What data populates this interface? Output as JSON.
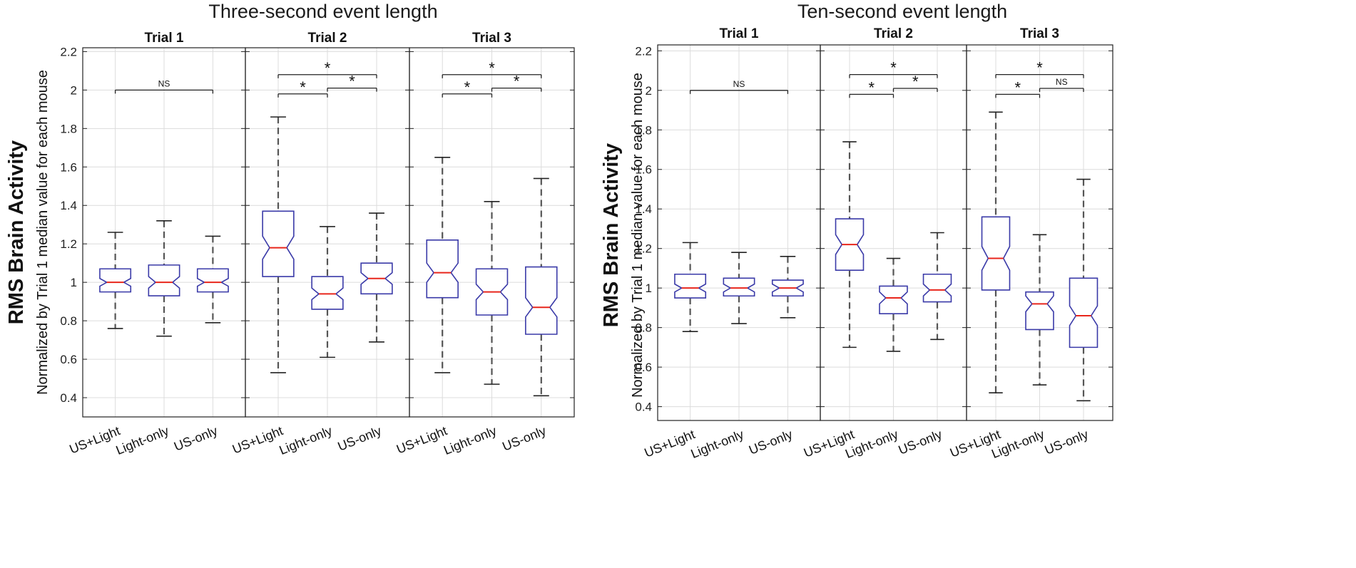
{
  "chart_data": [
    {
      "type": "boxplot",
      "title": "Three-second event length",
      "ylabel": "RMS Brain Activity",
      "ylabel_sub": "Normalized by Trial 1 median value for each mouse",
      "ylim": [
        0.3,
        2.22
      ],
      "yticks": [
        0.4,
        0.6,
        0.8,
        1,
        1.2,
        1.4,
        1.6,
        1.8,
        2,
        2.2
      ],
      "ytick_labels": [
        "0.4",
        "0.6",
        "0.8",
        "1",
        "1.2",
        "1.4",
        "1.6",
        "1.8",
        "2",
        "2.2"
      ],
      "categories": [
        "US+Light",
        "Light-only",
        "US-only"
      ],
      "grid": true,
      "panels": [
        {
          "name": "Trial 1",
          "boxes": [
            {
              "q1": 0.95,
              "median": 1.0,
              "q3": 1.07,
              "lo": 0.76,
              "hi": 1.26,
              "notch": 0.02
            },
            {
              "q1": 0.93,
              "median": 1.0,
              "q3": 1.09,
              "lo": 0.72,
              "hi": 1.32,
              "notch": 0.03
            },
            {
              "q1": 0.95,
              "median": 1.0,
              "q3": 1.07,
              "lo": 0.79,
              "hi": 1.24,
              "notch": 0.02
            }
          ],
          "brackets": [
            {
              "from": 0,
              "to": 2,
              "y": 2.0,
              "label": "NS"
            }
          ]
        },
        {
          "name": "Trial 2",
          "boxes": [
            {
              "q1": 1.03,
              "median": 1.18,
              "q3": 1.37,
              "lo": 0.53,
              "hi": 1.86,
              "notch": 0.06
            },
            {
              "q1": 0.86,
              "median": 0.94,
              "q3": 1.03,
              "lo": 0.61,
              "hi": 1.29,
              "notch": 0.03
            },
            {
              "q1": 0.94,
              "median": 1.02,
              "q3": 1.1,
              "lo": 0.69,
              "hi": 1.36,
              "notch": 0.03
            }
          ],
          "brackets": [
            {
              "from": 0,
              "to": 1,
              "y": 1.98,
              "label": "*"
            },
            {
              "from": 1,
              "to": 2,
              "y": 2.01,
              "label": "*"
            },
            {
              "from": 0,
              "to": 2,
              "y": 2.08,
              "label": "*"
            }
          ]
        },
        {
          "name": "Trial 3",
          "boxes": [
            {
              "q1": 0.92,
              "median": 1.05,
              "q3": 1.22,
              "lo": 0.53,
              "hi": 1.65,
              "notch": 0.05
            },
            {
              "q1": 0.83,
              "median": 0.95,
              "q3": 1.07,
              "lo": 0.47,
              "hi": 1.42,
              "notch": 0.04
            },
            {
              "q1": 0.73,
              "median": 0.87,
              "q3": 1.08,
              "lo": 0.41,
              "hi": 1.54,
              "notch": 0.05
            }
          ],
          "brackets": [
            {
              "from": 0,
              "to": 1,
              "y": 1.98,
              "label": "*"
            },
            {
              "from": 1,
              "to": 2,
              "y": 2.01,
              "label": "*"
            },
            {
              "from": 0,
              "to": 2,
              "y": 2.08,
              "label": "*"
            }
          ]
        }
      ]
    },
    {
      "type": "boxplot",
      "title": "Ten-second event length",
      "ylabel": "RMS Brain Activity",
      "ylabel_sub": "Normalized by Trial 1 median value for each mouse",
      "ylim": [
        0.33,
        2.23
      ],
      "yticks": [
        0.4,
        0.6,
        0.8,
        1,
        1.2,
        1.4,
        1.6,
        1.8,
        2,
        2.2
      ],
      "ytick_labels": [
        "0.4",
        "0.6",
        "0.8",
        "1",
        "1.2",
        "1.4",
        "1.6",
        "1.8",
        "2",
        "2.2"
      ],
      "categories": [
        "US+Light",
        "Light-only",
        "US-only"
      ],
      "grid": true,
      "panels": [
        {
          "name": "Trial 1",
          "boxes": [
            {
              "q1": 0.95,
              "median": 1.0,
              "q3": 1.07,
              "lo": 0.78,
              "hi": 1.23,
              "notch": 0.02
            },
            {
              "q1": 0.96,
              "median": 1.0,
              "q3": 1.05,
              "lo": 0.82,
              "hi": 1.18,
              "notch": 0.02
            },
            {
              "q1": 0.96,
              "median": 1.0,
              "q3": 1.04,
              "lo": 0.85,
              "hi": 1.16,
              "notch": 0.02
            }
          ],
          "brackets": [
            {
              "from": 0,
              "to": 2,
              "y": 2.0,
              "label": "NS"
            }
          ]
        },
        {
          "name": "Trial 2",
          "boxes": [
            {
              "q1": 1.09,
              "median": 1.22,
              "q3": 1.35,
              "lo": 0.7,
              "hi": 1.74,
              "notch": 0.05
            },
            {
              "q1": 0.87,
              "median": 0.95,
              "q3": 1.01,
              "lo": 0.68,
              "hi": 1.15,
              "notch": 0.03
            },
            {
              "q1": 0.93,
              "median": 0.99,
              "q3": 1.07,
              "lo": 0.74,
              "hi": 1.28,
              "notch": 0.03
            }
          ],
          "brackets": [
            {
              "from": 0,
              "to": 1,
              "y": 1.98,
              "label": "*"
            },
            {
              "from": 1,
              "to": 2,
              "y": 2.01,
              "label": "*"
            },
            {
              "from": 0,
              "to": 2,
              "y": 2.08,
              "label": "*"
            }
          ]
        },
        {
          "name": "Trial 3",
          "boxes": [
            {
              "q1": 0.99,
              "median": 1.15,
              "q3": 1.36,
              "lo": 0.47,
              "hi": 1.89,
              "notch": 0.06
            },
            {
              "q1": 0.79,
              "median": 0.92,
              "q3": 0.98,
              "lo": 0.51,
              "hi": 1.27,
              "notch": 0.04
            },
            {
              "q1": 0.7,
              "median": 0.86,
              "q3": 1.05,
              "lo": 0.43,
              "hi": 1.55,
              "notch": 0.05
            }
          ],
          "brackets": [
            {
              "from": 0,
              "to": 1,
              "y": 1.98,
              "label": "*"
            },
            {
              "from": 1,
              "to": 2,
              "y": 2.01,
              "label": "NS"
            },
            {
              "from": 0,
              "to": 2,
              "y": 2.08,
              "label": "*"
            }
          ]
        }
      ]
    }
  ],
  "colors": {
    "box": "#3a3aa8",
    "median": "#e8261c",
    "whisker": "#555555",
    "grid": "#dcdcdc",
    "axis": "#222222",
    "bracket": "#222222"
  }
}
